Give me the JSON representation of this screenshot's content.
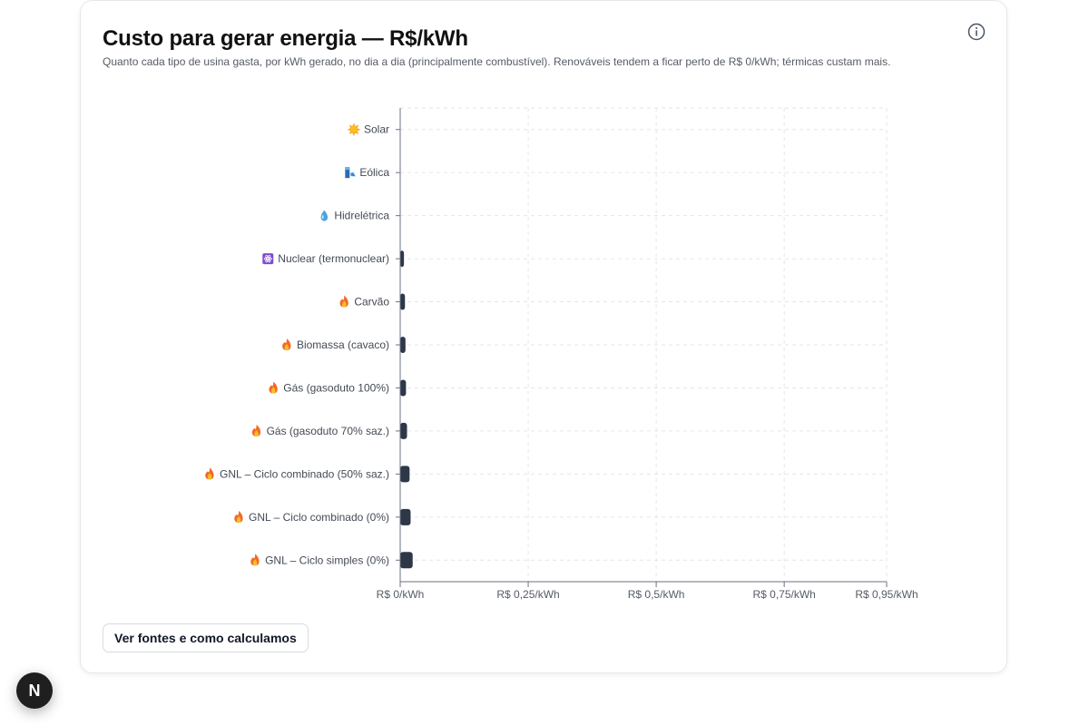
{
  "card": {
    "title": "Custo para gerar energia — R$/kWh",
    "subtitle": "Quanto cada tipo de usina gasta, por kWh gerado, no dia a dia (principalmente combustível). Renováveis tendem a ficar perto de R$ 0/kWh; térmicas custam mais.",
    "sources_button": "Ver fontes e como calculamos"
  },
  "badge": {
    "letter": "N"
  },
  "colors": {
    "bar": "#2e3748",
    "grid": "#e3e6ea",
    "axis": "#6b7280"
  },
  "chart_data": {
    "type": "bar",
    "orientation": "horizontal",
    "title": "Custo para gerar energia — R$/kWh",
    "xlabel": "",
    "ylabel": "",
    "xlim": [
      0,
      0.95
    ],
    "ticks": [
      {
        "value": 0,
        "label": "R$ 0/kWh"
      },
      {
        "value": 0.25,
        "label": "R$ 0,25/kWh"
      },
      {
        "value": 0.5,
        "label": "R$ 0,5/kWh"
      },
      {
        "value": 0.75,
        "label": "R$ 0,75/kWh"
      },
      {
        "value": 0.95,
        "label": "R$ 0,95/kWh"
      }
    ],
    "categories": [
      {
        "label": "Solar",
        "icon": "sun-icon",
        "value": 0
      },
      {
        "label": "Eólica",
        "icon": "wind-turbine-icon",
        "value": 0
      },
      {
        "label": "Hidrelétrica",
        "icon": "droplet-icon",
        "value": 0
      },
      {
        "label": "Nuclear (termonuclear)",
        "icon": "atom-icon",
        "value": 0.002
      },
      {
        "label": "Carvão",
        "icon": "fire-icon",
        "value": 0.004
      },
      {
        "label": "Biomassa (cavaco)",
        "icon": "fire-icon",
        "value": 0.005
      },
      {
        "label": "Gás (gasoduto 100%)",
        "icon": "fire-icon",
        "value": 0.006
      },
      {
        "label": "Gás (gasoduto 70% saz.)",
        "icon": "fire-icon",
        "value": 0.008
      },
      {
        "label": "GNL – Ciclo combinado (50% saz.)",
        "icon": "fire-icon",
        "value": 0.013
      },
      {
        "label": "GNL – Ciclo combinado (0%)",
        "icon": "fire-icon",
        "value": 0.015
      },
      {
        "label": "GNL – Ciclo simples (0%)",
        "icon": "fire-icon",
        "value": 0.019
      }
    ]
  }
}
